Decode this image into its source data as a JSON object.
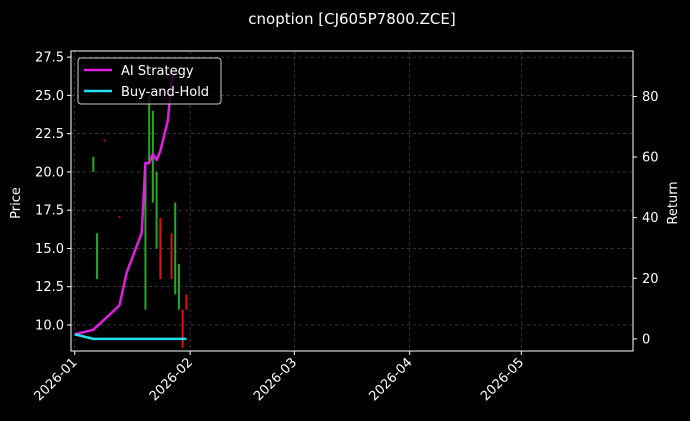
{
  "chart_data": {
    "type": "line",
    "title": "cnoption [CJ605P7800.ZCE]",
    "ylabel": "Price",
    "y2label": "Return",
    "xlim": [
      "2025-12-31",
      "2026-05-31"
    ],
    "ylim": [
      8.3,
      27.9
    ],
    "y2lim": [
      -4,
      95
    ],
    "x_ticks": [
      "2026-01-01",
      "2026-02-01",
      "2026-03-01",
      "2026-04-01",
      "2026-05-01"
    ],
    "x_tick_labels": [
      "2026-01",
      "2026-02",
      "2026-03",
      "2026-04",
      "2026-05"
    ],
    "y_ticks": [
      10.0,
      12.5,
      15.0,
      17.5,
      20.0,
      22.5,
      25.0,
      27.5
    ],
    "y_tick_labels": [
      "10.0",
      "12.5",
      "15.0",
      "17.5",
      "20.0",
      "22.5",
      "25.0",
      "27.5"
    ],
    "y2_ticks": [
      0,
      20,
      40,
      60,
      80
    ],
    "y2_tick_labels": [
      "0",
      "20",
      "40",
      "60",
      "80"
    ],
    "grid": true,
    "legend_position": "upper-left",
    "background": "#000000",
    "candles": [
      {
        "date": "2026-01-06",
        "low": 20.0,
        "high": 21.0,
        "dir": "up"
      },
      {
        "date": "2026-01-07",
        "low": 13.0,
        "high": 16.0,
        "dir": "up"
      },
      {
        "date": "2026-01-09",
        "low": 22.0,
        "high": 22.1,
        "dir": "down"
      },
      {
        "date": "2026-01-13",
        "low": 17.0,
        "high": 17.1,
        "dir": "down"
      },
      {
        "date": "2026-01-20",
        "low": 11.0,
        "high": 20.5,
        "dir": "up"
      },
      {
        "date": "2026-01-21",
        "low": 20.5,
        "high": 25.0,
        "dir": "up"
      },
      {
        "date": "2026-01-22",
        "low": 18.0,
        "high": 24.0,
        "dir": "up"
      },
      {
        "date": "2026-01-23",
        "low": 15.0,
        "high": 20.0,
        "dir": "up"
      },
      {
        "date": "2026-01-24",
        "low": 13.0,
        "high": 17.0,
        "dir": "down"
      },
      {
        "date": "2026-01-27",
        "low": 13.0,
        "high": 16.0,
        "dir": "down"
      },
      {
        "date": "2026-01-28",
        "low": 12.0,
        "high": 18.0,
        "dir": "up"
      },
      {
        "date": "2026-01-29",
        "low": 11.0,
        "high": 14.0,
        "dir": "up"
      },
      {
        "date": "2026-01-30",
        "low": 8.5,
        "high": 11.0,
        "dir": "down"
      },
      {
        "date": "2026-01-31",
        "low": 11.0,
        "high": 12.0,
        "dir": "down"
      }
    ],
    "series": [
      {
        "name": "AI Strategy",
        "axis": "right",
        "color": "#e020e0",
        "x": [
          "2026-01-01",
          "2026-01-06",
          "2026-01-13",
          "2026-01-15",
          "2026-01-19",
          "2026-01-20",
          "2026-01-21",
          "2026-01-22",
          "2026-01-23",
          "2026-01-24",
          "2026-01-26",
          "2026-01-27",
          "2026-01-28",
          "2026-01-29"
        ],
        "values": [
          1.5,
          3,
          11,
          22,
          35,
          58,
          58,
          61,
          59,
          62,
          72,
          85,
          88,
          88
        ]
      },
      {
        "name": "Buy-and-Hold",
        "axis": "right",
        "color": "#22e0f0",
        "x": [
          "2026-01-01",
          "2026-01-06",
          "2026-01-31"
        ],
        "values": [
          1.5,
          0,
          0
        ]
      }
    ],
    "colors": {
      "up": "#22aa22",
      "down": "#dd1111",
      "grid": "#555555"
    }
  }
}
